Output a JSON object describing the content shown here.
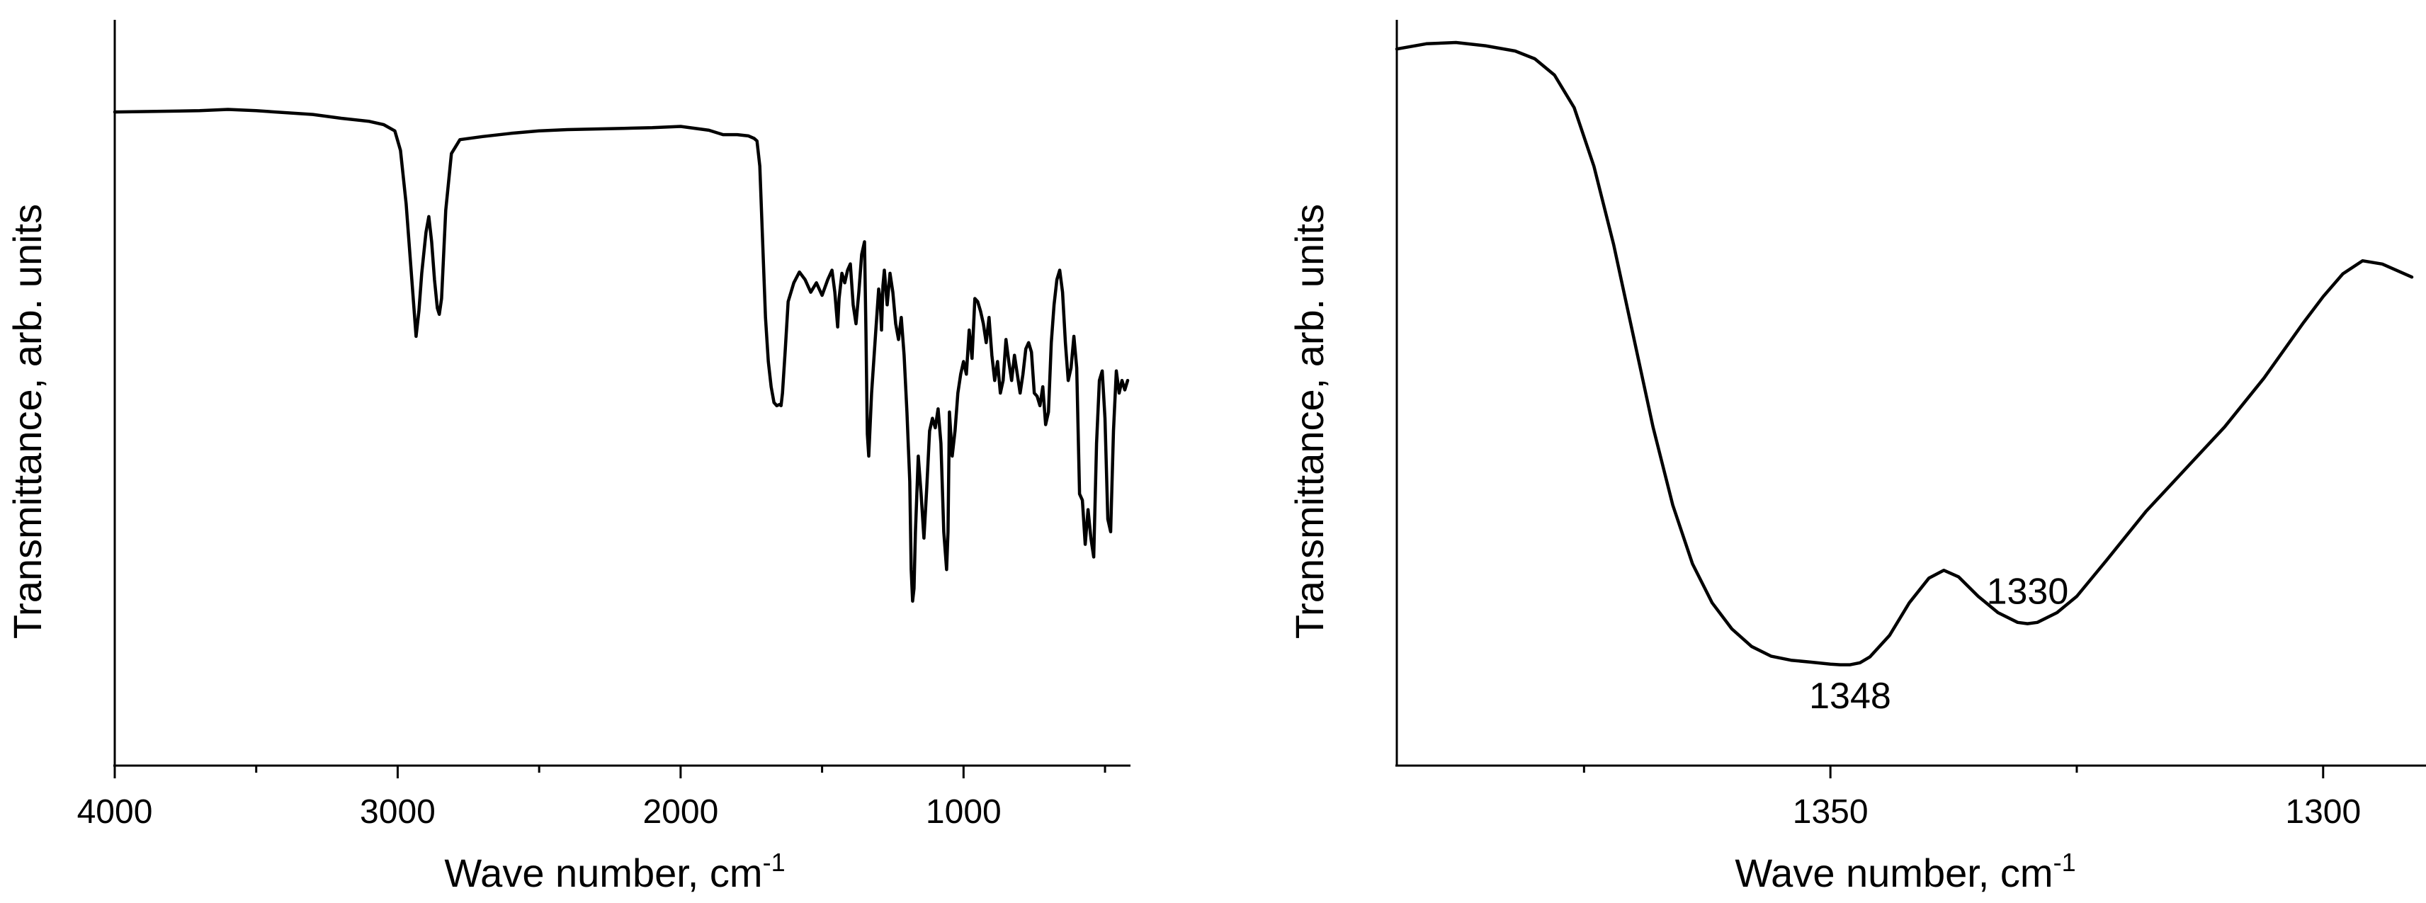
{
  "chart_data": [
    {
      "type": "line",
      "xlabel": "Wave number, cm",
      "xlabel_sup": "-1",
      "ylabel": "Transmittance, arb. units",
      "xlim": [
        4000,
        420
      ],
      "x_reversed": true,
      "ylim": [
        0,
        100
      ],
      "y_ticks_shown": false,
      "grid": false,
      "x_major_ticks": [
        4000,
        3000,
        2000,
        1000
      ],
      "x_minor_ticks": [
        3500,
        2500,
        1500,
        500
      ],
      "x_tick_labels": [
        "4000",
        "3000",
        "2000",
        "1000"
      ],
      "series": [
        {
          "x": [
            4000,
            3700,
            3600,
            3500,
            3300,
            3200,
            3100,
            3050,
            3010,
            2990,
            2970,
            2950,
            2935,
            2925,
            2915,
            2900,
            2890,
            2880,
            2870,
            2860,
            2853,
            2845,
            2830,
            2810,
            2780,
            2700,
            2600,
            2500,
            2400,
            2300,
            2200,
            2100,
            2000,
            1900,
            1850,
            1800,
            1760,
            1740,
            1730,
            1720,
            1710,
            1700,
            1690,
            1680,
            1670,
            1660,
            1650,
            1645,
            1640,
            1630,
            1620,
            1600,
            1580,
            1560,
            1540,
            1520,
            1500,
            1480,
            1465,
            1455,
            1445,
            1440,
            1430,
            1420,
            1410,
            1400,
            1390,
            1380,
            1370,
            1360,
            1350,
            1345,
            1340,
            1335,
            1325,
            1310,
            1300,
            1295,
            1290,
            1285,
            1280,
            1270,
            1260,
            1250,
            1240,
            1230,
            1220,
            1210,
            1200,
            1190,
            1185,
            1180,
            1175,
            1170,
            1160,
            1150,
            1140,
            1130,
            1120,
            1110,
            1100,
            1090,
            1080,
            1070,
            1060,
            1055,
            1050,
            1040,
            1030,
            1020,
            1010,
            1000,
            990,
            980,
            970,
            960,
            950,
            940,
            930,
            920,
            910,
            900,
            890,
            880,
            870,
            860,
            850,
            840,
            830,
            820,
            810,
            800,
            790,
            780,
            770,
            760,
            750,
            740,
            730,
            720,
            710,
            700,
            690,
            680,
            670,
            660,
            650,
            640,
            630,
            620,
            610,
            600,
            590,
            580,
            570,
            560,
            550,
            540,
            530,
            520,
            510,
            500,
            490,
            480,
            470,
            460,
            450,
            440,
            430,
            420
          ],
          "y": [
            94.6,
            94.8,
            95.0,
            94.8,
            94.2,
            93.6,
            93.1,
            92.6,
            91.6,
            88.5,
            80.0,
            68.0,
            59.0,
            63.0,
            69.0,
            75.5,
            78.0,
            74.0,
            68.0,
            63.5,
            62.5,
            65.0,
            79.0,
            88.0,
            90.2,
            90.7,
            91.2,
            91.6,
            91.8,
            91.9,
            92.0,
            92.1,
            92.3,
            91.7,
            91.0,
            91.0,
            90.8,
            90.4,
            90.0,
            86.0,
            74.0,
            62.0,
            55.0,
            51.0,
            48.5,
            48.0,
            48.2,
            48.0,
            50.0,
            57.0,
            64.5,
            67.5,
            69.2,
            68.0,
            66.0,
            67.5,
            65.5,
            68.0,
            69.5,
            66.0,
            60.5,
            65.0,
            69.0,
            67.5,
            69.5,
            70.5,
            64.0,
            61.0,
            66.0,
            72.0,
            74.0,
            60.0,
            43.5,
            40.0,
            50.0,
            60.0,
            66.5,
            65.0,
            60.0,
            67.0,
            69.5,
            64.0,
            69.0,
            66.0,
            61.0,
            58.5,
            62.0,
            56.0,
            47.0,
            36.0,
            22.0,
            17.0,
            19.0,
            28.0,
            40.0,
            34.0,
            27.0,
            35.0,
            44.0,
            46.0,
            44.5,
            47.5,
            42.0,
            28.0,
            22.0,
            28.0,
            47.0,
            40.0,
            44.0,
            50.0,
            53.0,
            55.0,
            53.0,
            60.0,
            55.5,
            65.0,
            64.5,
            63.0,
            61.0,
            58.0,
            62.0,
            56.0,
            52.0,
            55.0,
            50.0,
            52.0,
            58.5,
            55.0,
            52.0,
            56.0,
            53.0,
            50.0,
            53.0,
            57.0,
            58.0,
            56.5,
            50.0,
            49.5,
            48.0,
            51.0,
            45.0,
            47.0,
            58.0,
            64.0,
            68.0,
            69.5,
            66.0,
            58.0,
            52.0,
            54.0,
            59.0,
            54.0,
            34.0,
            33.0,
            26.0,
            31.5,
            27.0,
            24.0,
            42.0,
            52.0,
            53.5,
            46.0,
            30.0,
            28.0,
            44.0,
            53.5,
            50.0,
            52.0,
            50.5,
            52.0
          ]
        }
      ]
    },
    {
      "type": "line",
      "xlabel": "Wave number, cm",
      "xlabel_sup": "-1",
      "ylabel": "Transmittance, arb. units",
      "xlim": [
        1394,
        1291
      ],
      "x_reversed": true,
      "ylim": [
        0,
        100
      ],
      "y_ticks_shown": false,
      "grid": false,
      "x_major_ticks": [
        1350,
        1300
      ],
      "x_minor_ticks": [
        1375,
        1325
      ],
      "x_tick_labels": [
        "1350",
        "1300"
      ],
      "annotations": [
        {
          "text": "1348",
          "x": 1348,
          "y": 6
        },
        {
          "text": "1330",
          "x": 1330,
          "y": 22
        }
      ],
      "series": [
        {
          "x": [
            1394,
            1391,
            1388,
            1385,
            1382,
            1380,
            1378,
            1376,
            1374,
            1372,
            1370,
            1368,
            1366,
            1364,
            1362,
            1360,
            1358,
            1356,
            1354,
            1352,
            1350,
            1349,
            1348,
            1347,
            1346,
            1344,
            1342,
            1340,
            1338.5,
            1337,
            1335,
            1333,
            1331,
            1330,
            1329,
            1327,
            1325,
            1322,
            1318,
            1314,
            1310,
            1306,
            1302,
            1300,
            1298,
            1296,
            1294,
            1291
          ],
          "y": [
            99.0,
            99.8,
            100.0,
            99.5,
            98.7,
            97.5,
            95.0,
            90.0,
            81.0,
            69.0,
            55.0,
            41.0,
            29.0,
            20.0,
            14.0,
            10.0,
            7.3,
            5.8,
            5.2,
            4.9,
            4.6,
            4.5,
            4.5,
            4.8,
            5.7,
            9.0,
            14.0,
            17.8,
            19.0,
            18.0,
            15.0,
            12.5,
            11.0,
            10.8,
            11.0,
            12.5,
            15.0,
            20.5,
            28.0,
            34.5,
            41.0,
            48.5,
            57.0,
            61.0,
            64.5,
            66.5,
            66.0,
            64.0
          ]
        }
      ]
    }
  ]
}
